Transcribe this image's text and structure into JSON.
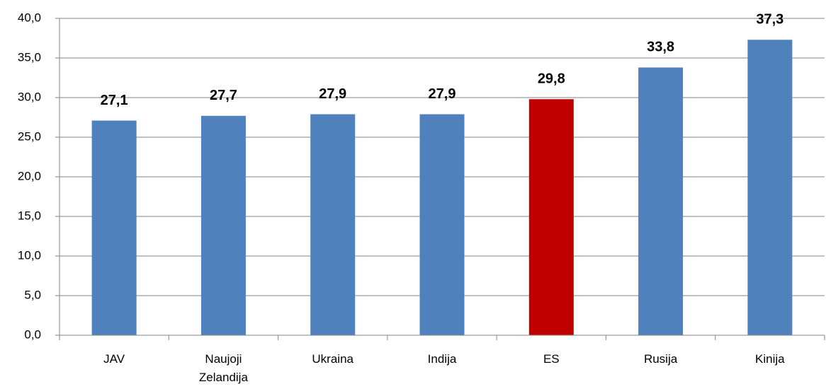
{
  "chart_data": {
    "type": "bar",
    "categories": [
      "JAV",
      "Naujoji Zelandija",
      "Ukraina",
      "Indija",
      "ES",
      "Rusija",
      "Kinija"
    ],
    "values": [
      27.1,
      27.7,
      27.9,
      27.9,
      29.8,
      33.8,
      37.3
    ],
    "value_labels": [
      "27,1",
      "27,7",
      "27,9",
      "27,9",
      "29,8",
      "33,8",
      "37,3"
    ],
    "colors": [
      "#4f81bd",
      "#4f81bd",
      "#4f81bd",
      "#4f81bd",
      "#c00000",
      "#4f81bd",
      "#4f81bd"
    ],
    "ylim": [
      0,
      40
    ],
    "yticks": [
      {
        "value": 0,
        "label": "0,0"
      },
      {
        "value": 5,
        "label": "5,0"
      },
      {
        "value": 10,
        "label": "10,0"
      },
      {
        "value": 15,
        "label": "15,0"
      },
      {
        "value": 20,
        "label": "20,0"
      },
      {
        "value": 25,
        "label": "25,0"
      },
      {
        "value": 30,
        "label": "30,0"
      },
      {
        "value": 35,
        "label": "35,0"
      },
      {
        "value": 40,
        "label": "40,0"
      }
    ],
    "grid": true
  }
}
